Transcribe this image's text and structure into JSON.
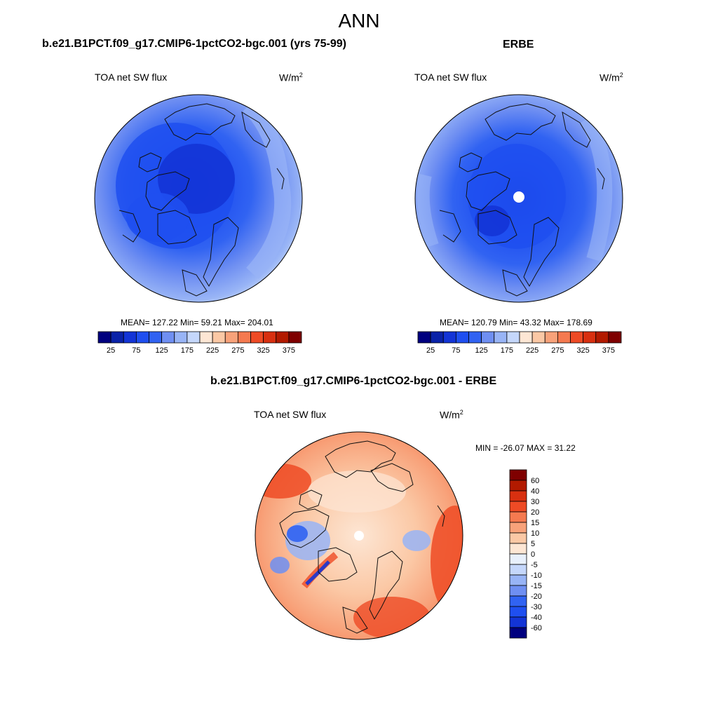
{
  "title": "ANN",
  "panels": [
    {
      "id": "model",
      "header": "b.e21.B1PCT.f09_g17.CMIP6-1pctCO2-bgc.001 (yrs 75-99)",
      "variable": "TOA net SW flux",
      "units_base": "W/m",
      "units_exp": "2",
      "stats": "MEAN= 127.22  Min=  59.21  Max= 204.01",
      "pole_hole": false
    },
    {
      "id": "obs",
      "header": "ERBE",
      "variable": "TOA net SW flux",
      "units_base": "W/m",
      "units_exp": "2",
      "stats": "MEAN= 120.79  Min=  43.32  Max= 178.69",
      "pole_hole": true
    },
    {
      "id": "diff",
      "header": "b.e21.B1PCT.f09_g17.CMIP6-1pctCO2-bgc.001 - ERBE",
      "variable": "TOA net SW flux",
      "units_base": "W/m",
      "units_exp": "2",
      "stats": "MIN = -26.07 MAX =  31.22",
      "pole_hole": true
    }
  ],
  "chart_data": [
    {
      "type": "heatmap",
      "projection": "north-polar-stereographic",
      "title": "b.e21.B1PCT.f09_g17.CMIP6-1pctCO2-bgc.001 (yrs 75-99)",
      "field": "TOA net SW flux",
      "units": "W/m2",
      "mean": 127.22,
      "min": 59.21,
      "max": 204.01,
      "colorbar": {
        "orientation": "horizontal",
        "levels": [
          25,
          50,
          75,
          100,
          125,
          150,
          175,
          200,
          225,
          250,
          275,
          300,
          325,
          350,
          375
        ],
        "tick_labels": [
          "25",
          "75",
          "125",
          "175",
          "225",
          "275",
          "325",
          "375"
        ],
        "colors": [
          "#00007f",
          "#0a22a8",
          "#1334d6",
          "#1f4ff0",
          "#3163f2",
          "#6f8ff2",
          "#98b4f6",
          "#c5d7fb",
          "#fde6d4",
          "#fbc8a5",
          "#f8a27a",
          "#f57a50",
          "#ee4b25",
          "#d83010",
          "#b21a00",
          "#7f0000"
        ]
      }
    },
    {
      "type": "heatmap",
      "projection": "north-polar-stereographic",
      "title": "ERBE",
      "field": "TOA net SW flux",
      "units": "W/m2",
      "mean": 120.79,
      "min": 43.32,
      "max": 178.69,
      "colorbar": {
        "orientation": "horizontal",
        "levels": [
          25,
          50,
          75,
          100,
          125,
          150,
          175,
          200,
          225,
          250,
          275,
          300,
          325,
          350,
          375
        ],
        "tick_labels": [
          "25",
          "75",
          "125",
          "175",
          "225",
          "275",
          "325",
          "375"
        ],
        "colors": [
          "#00007f",
          "#0a22a8",
          "#1334d6",
          "#1f4ff0",
          "#3163f2",
          "#6f8ff2",
          "#98b4f6",
          "#c5d7fb",
          "#fde6d4",
          "#fbc8a5",
          "#f8a27a",
          "#f57a50",
          "#ee4b25",
          "#d83010",
          "#b21a00",
          "#7f0000"
        ]
      }
    },
    {
      "type": "heatmap",
      "projection": "north-polar-stereographic",
      "title": "b.e21.B1PCT.f09_g17.CMIP6-1pctCO2-bgc.001 - ERBE",
      "field": "TOA net SW flux",
      "units": "W/m2",
      "min": -26.07,
      "max": 31.22,
      "colorbar": {
        "orientation": "vertical",
        "levels": [
          60,
          40,
          30,
          20,
          15,
          10,
          5,
          0,
          -5,
          -10,
          -15,
          -20,
          -30,
          -40,
          -60
        ],
        "tick_labels": [
          "60",
          "40",
          "30",
          "20",
          "15",
          "10",
          "5",
          "0",
          "-5",
          "-10",
          "-15",
          "-20",
          "-30",
          "-40",
          "-60"
        ],
        "colors": [
          "#7f0000",
          "#b21a00",
          "#d83010",
          "#ee4b25",
          "#f57a50",
          "#f8a27a",
          "#fbc8a5",
          "#fde6d4",
          "#e8f0fc",
          "#c5d7fb",
          "#98b4f6",
          "#6f8ff2",
          "#3163f2",
          "#1f4ff0",
          "#1334d6",
          "#00007f"
        ]
      }
    }
  ]
}
